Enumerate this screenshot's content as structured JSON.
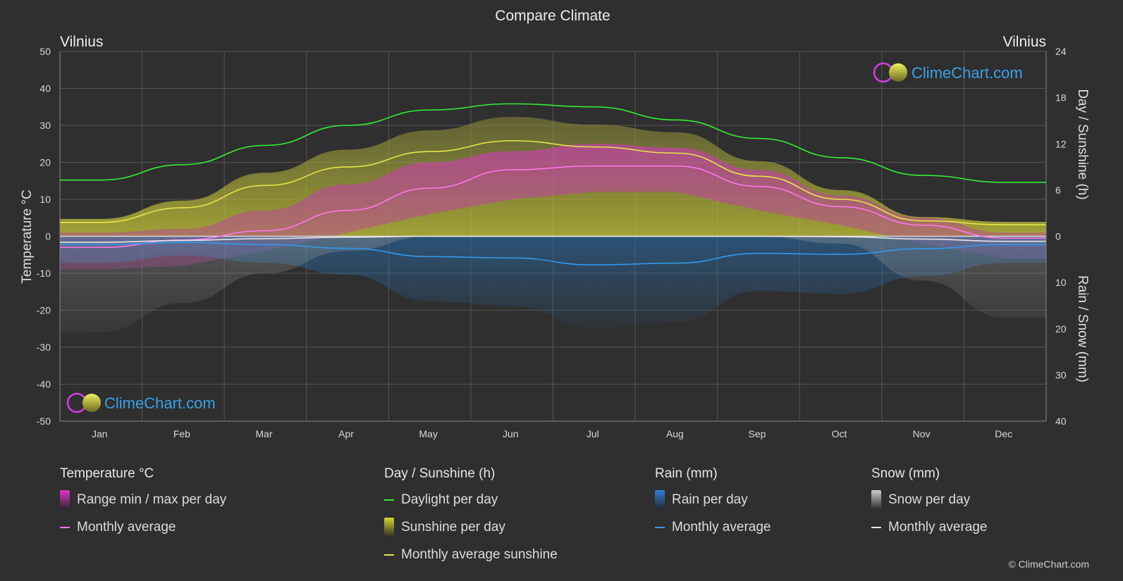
{
  "header": {
    "title": "Compare Climate",
    "left_location": "Vilnius",
    "right_location": "Vilnius"
  },
  "watermark": {
    "text": "ClimeChart.com"
  },
  "copyright": "© ClimeChart.com",
  "chart_data": {
    "type": "area",
    "title": "Compare Climate",
    "months": [
      "Jan",
      "Feb",
      "Mar",
      "Apr",
      "May",
      "Jun",
      "Jul",
      "Aug",
      "Sep",
      "Oct",
      "Nov",
      "Dec"
    ],
    "axes": {
      "left": {
        "label": "Temperature °C",
        "min": -50,
        "max": 50,
        "ticks": [
          50,
          40,
          30,
          20,
          10,
          0,
          -10,
          -20,
          -30,
          -40,
          -50
        ]
      },
      "right_top": {
        "label": "Day / Sunshine (h)",
        "min": 0,
        "max": 24,
        "ticks": [
          24,
          18,
          12,
          6,
          0
        ]
      },
      "right_bottom": {
        "label": "Rain / Snow (mm)",
        "min": 0,
        "max": 40,
        "ticks": [
          0,
          10,
          20,
          30,
          40
        ]
      }
    },
    "grid": true,
    "series": {
      "temperature_avg": {
        "name": "Monthly average",
        "color": "#ff77ee",
        "values": [
          -3,
          -1,
          1.5,
          7,
          13,
          18,
          19,
          19,
          13.5,
          8,
          3,
          -0.5
        ]
      },
      "temperature_max": {
        "color": "#cc33aa",
        "values": [
          1,
          2,
          7,
          14,
          20,
          23,
          25,
          24,
          18,
          11,
          5,
          1
        ]
      },
      "temperature_min": {
        "color": "#cc33aa",
        "values": [
          -9,
          -8,
          -4,
          1,
          6,
          10,
          12,
          12,
          7,
          3,
          -2,
          -6
        ]
      },
      "daylight": {
        "name": "Daylight per day",
        "color": "#33ee33",
        "values": [
          7.3,
          9.3,
          11.8,
          14.4,
          16.4,
          17.2,
          16.8,
          15.1,
          12.7,
          10.2,
          7.9,
          7.0
        ]
      },
      "sunshine_avg": {
        "name": "Monthly average sunshine",
        "color": "#e6e64a",
        "values": [
          1.8,
          3.7,
          6.6,
          9.0,
          11.0,
          12.4,
          11.6,
          10.8,
          7.8,
          4.8,
          2.0,
          1.5
        ]
      },
      "rain_avg": {
        "name": "Monthly average",
        "color": "#3399ee",
        "values": [
          1.8,
          1.3,
          1.8,
          2.6,
          4.4,
          4.7,
          6.2,
          5.8,
          3.7,
          3.9,
          2.7,
          1.8
        ]
      },
      "snow_avg": {
        "name": "Monthly average",
        "color": "#e6e6e6",
        "values": [
          1.3,
          0.9,
          0.5,
          0.2,
          0,
          0,
          0,
          0,
          0,
          0.1,
          0.6,
          1.1
        ]
      }
    }
  },
  "legend": {
    "groups": [
      {
        "header": "Temperature °C",
        "items": [
          {
            "label": "Range min / max per day",
            "swatch": "box",
            "color": "#e033cc"
          },
          {
            "label": "Monthly average",
            "swatch": "line",
            "color": "#ff77ee"
          }
        ]
      },
      {
        "header": "Day / Sunshine (h)",
        "items": [
          {
            "label": "Daylight per day",
            "swatch": "line",
            "color": "#33ee33"
          },
          {
            "label": "Sunshine per day",
            "swatch": "box",
            "color": "#d6d633"
          },
          {
            "label": "Monthly average sunshine",
            "swatch": "line",
            "color": "#e6e64a"
          }
        ]
      },
      {
        "header": "Rain (mm)",
        "items": [
          {
            "label": "Rain per day",
            "swatch": "box",
            "color": "#2a7fd4"
          },
          {
            "label": "Monthly average",
            "swatch": "line",
            "color": "#3399ee"
          }
        ]
      },
      {
        "header": "Snow (mm)",
        "items": [
          {
            "label": "Snow per day",
            "swatch": "box",
            "color": "#cfcfcf"
          },
          {
            "label": "Monthly average",
            "swatch": "line",
            "color": "#e6e6e6"
          }
        ]
      }
    ]
  }
}
